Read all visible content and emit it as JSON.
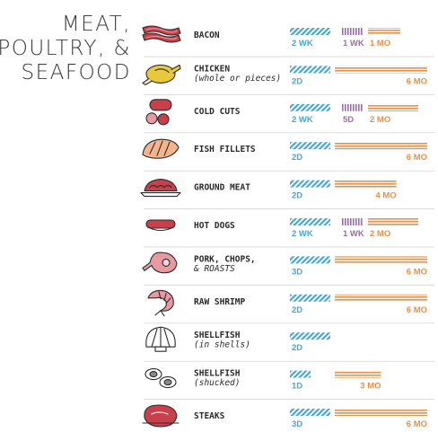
{
  "title": [
    "MEAT,",
    "POULTRY, &",
    "SEAFOOD"
  ],
  "colors": {
    "fridge": "#4aa6cf",
    "freezer_short": "#9b6fa5",
    "freezer": "#e6904a",
    "divider": "#cfcfcf",
    "text": "#2a2a2a"
  },
  "chart_data": {
    "type": "bar",
    "series_names": [
      "",
      "",
      ""
    ],
    "rows": [
      {
        "label": [
          "BACON"
        ],
        "icon": "bacon-icon",
        "segments": [
          {
            "kind": "fridge",
            "days": 14,
            "text": "2 WK"
          },
          {
            "kind": "freezer_short",
            "days": 7,
            "text": "1 WK"
          },
          {
            "kind": "freezer",
            "days": 30,
            "text": "1 MO"
          }
        ]
      },
      {
        "label": [
          "CHICKEN",
          "(whole or pieces)"
        ],
        "icon": "chicken-icon",
        "segments": [
          {
            "kind": "fridge",
            "days": 2,
            "text": "2D"
          },
          {
            "kind": "freezer",
            "days": 180,
            "text": "6 MO"
          }
        ]
      },
      {
        "label": [
          "COLD CUTS"
        ],
        "icon": "cold-cuts-icon",
        "segments": [
          {
            "kind": "fridge",
            "days": 14,
            "text": "2 WK"
          },
          {
            "kind": "freezer_short",
            "days": 5,
            "text": "5D"
          },
          {
            "kind": "freezer",
            "days": 60,
            "text": "2 MO"
          }
        ]
      },
      {
        "label": [
          "FISH FILLETS"
        ],
        "icon": "fish-fillet-icon",
        "segments": [
          {
            "kind": "fridge",
            "days": 2,
            "text": "2D"
          },
          {
            "kind": "freezer",
            "days": 180,
            "text": "6 MO"
          }
        ]
      },
      {
        "label": [
          "GROUND MEAT"
        ],
        "icon": "ground-meat-icon",
        "segments": [
          {
            "kind": "fridge",
            "days": 2,
            "text": "2D"
          },
          {
            "kind": "freezer",
            "days": 120,
            "text": "4 MO"
          }
        ]
      },
      {
        "label": [
          "HOT DOGS"
        ],
        "icon": "hot-dog-icon",
        "segments": [
          {
            "kind": "fridge",
            "days": 14,
            "text": "2 WK"
          },
          {
            "kind": "freezer_short",
            "days": 7,
            "text": "1 WK"
          },
          {
            "kind": "freezer",
            "days": 60,
            "text": "2 MO"
          }
        ]
      },
      {
        "label": [
          "PORK, CHOPS,",
          "& ROASTS"
        ],
        "icon": "pork-chop-icon",
        "segments": [
          {
            "kind": "fridge",
            "days": 3,
            "text": "3D"
          },
          {
            "kind": "freezer",
            "days": 180,
            "text": "6 MO"
          }
        ]
      },
      {
        "label": [
          "RAW SHRIMP"
        ],
        "icon": "shrimp-icon",
        "segments": [
          {
            "kind": "fridge",
            "days": 2,
            "text": "2D"
          },
          {
            "kind": "freezer",
            "days": 180,
            "text": "6 MO"
          }
        ]
      },
      {
        "label": [
          "SHELLFISH",
          "(in shells)"
        ],
        "icon": "shellfish-icon",
        "segments": [
          {
            "kind": "fridge",
            "days": 2,
            "text": "2D"
          }
        ]
      },
      {
        "label": [
          "SHELLFISH",
          "(shucked)"
        ],
        "icon": "shucked-shellfish-icon",
        "segments": [
          {
            "kind": "fridge",
            "days": 1,
            "text": "1D"
          },
          {
            "kind": "freezer",
            "days": 90,
            "text": "3 MO"
          }
        ]
      },
      {
        "label": [
          "STEAKS"
        ],
        "icon": "steak-icon",
        "segments": [
          {
            "kind": "fridge",
            "days": 3,
            "text": "3D"
          },
          {
            "kind": "freezer",
            "days": 180,
            "text": "6 MO"
          }
        ]
      }
    ]
  }
}
